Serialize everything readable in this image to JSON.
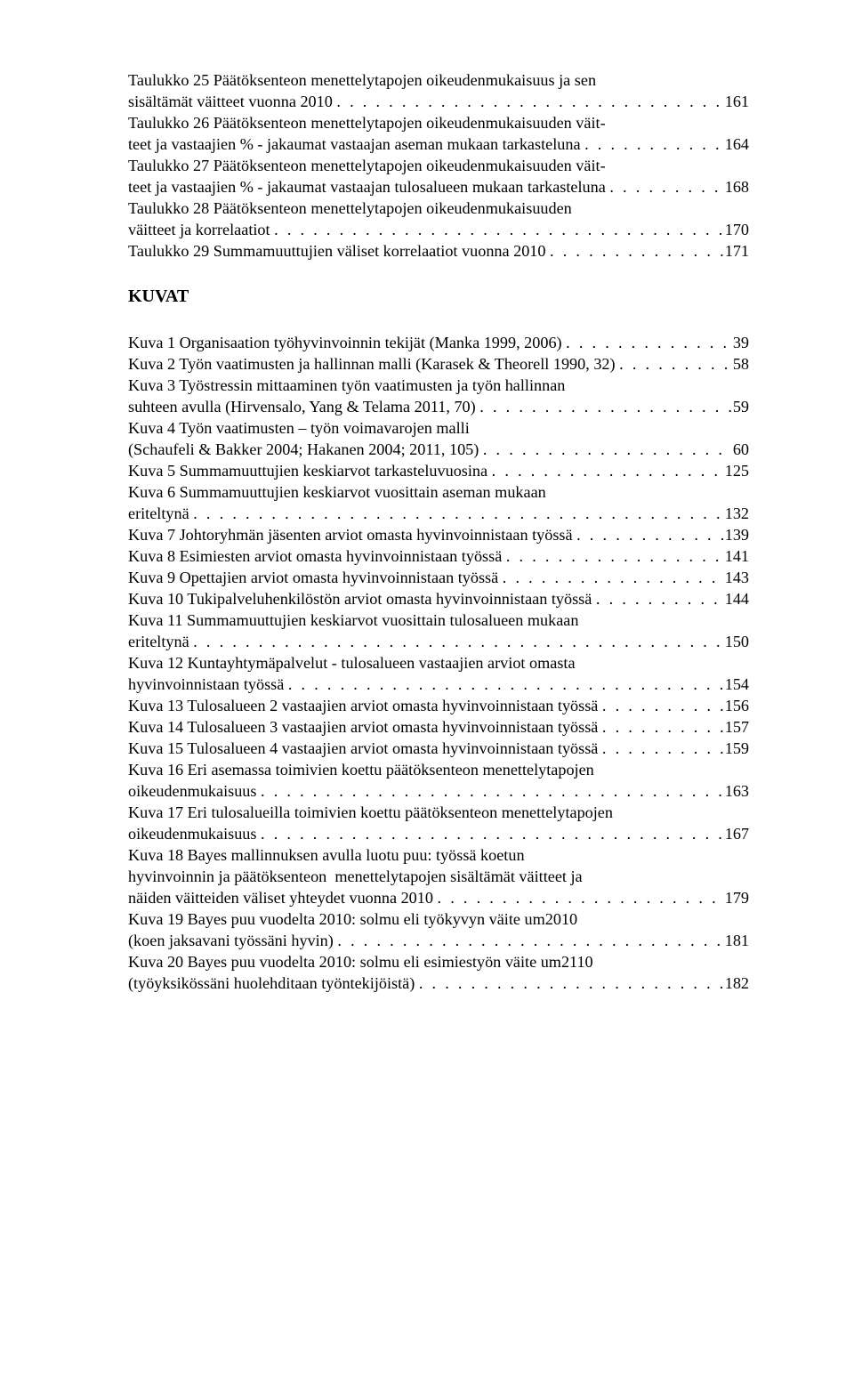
{
  "tables": [
    {
      "lines": [
        "Taulukko 25 Päätöksenteon menettelytapojen oikeudenmukaisuus ja sen"
      ],
      "last": "sisältämät väitteet vuonna 2010",
      "page": "161"
    },
    {
      "lines": [
        "Taulukko 26 Päätöksenteon menettelytapojen oikeudenmukaisuuden väit-"
      ],
      "last": "teet ja vastaajien % - jakaumat vastaajan aseman mukaan tarkasteluna",
      "page": "164"
    },
    {
      "lines": [
        "Taulukko 27 Päätöksenteon menettelytapojen oikeudenmukaisuuden väit-"
      ],
      "last": "teet ja vastaajien % - jakaumat vastaajan tulosalueen mukaan tarkasteluna",
      "page": "168"
    },
    {
      "lines": [
        "Taulukko 28 Päätöksenteon menettelytapojen oikeudenmukaisuuden"
      ],
      "last": "väitteet ja korrelaatiot",
      "page": "170"
    },
    {
      "lines": [],
      "last": "Taulukko 29 Summamuuttujien väliset korrelaatiot vuonna 2010",
      "page": "171"
    }
  ],
  "figuresHeading": "KUVAT",
  "figures": [
    {
      "lines": [],
      "last": "Kuva 1 Organisaation työhyvinvoinnin tekijät (Manka 1999, 2006)",
      "page": "39"
    },
    {
      "lines": [],
      "last": "Kuva 2 Työn vaatimusten ja hallinnan malli (Karasek & Theorell 1990, 32)",
      "page": "58"
    },
    {
      "lines": [
        "Kuva 3 Työstressin mittaaminen työn vaatimusten ja työn hallinnan"
      ],
      "last": "suhteen avulla (Hirvensalo, Yang & Telama 2011, 70)",
      "page": "59"
    },
    {
      "lines": [
        "Kuva 4 Työn vaatimusten – työn voimavarojen malli"
      ],
      "last": "(Schaufeli & Bakker 2004; Hakanen 2004; 2011, 105)",
      "page": "60"
    },
    {
      "lines": [],
      "last": "Kuva 5 Summamuuttujien keskiarvot tarkasteluvuosina",
      "page": "125"
    },
    {
      "lines": [
        "Kuva 6 Summamuuttujien keskiarvot vuosittain aseman mukaan"
      ],
      "last": "eriteltynä",
      "page": "132"
    },
    {
      "lines": [],
      "last": "Kuva 7 Johtoryhmän jäsenten arviot omasta hyvinvoinnistaan työssä",
      "page": "139"
    },
    {
      "lines": [],
      "last": "Kuva 8 Esimiesten arviot omasta hyvinvoinnistaan työssä",
      "page": "141"
    },
    {
      "lines": [],
      "last": "Kuva 9 Opettajien arviot omasta hyvinvoinnistaan työssä",
      "page": "143"
    },
    {
      "lines": [],
      "last": "Kuva 10 Tukipalveluhenkilöstön arviot omasta hyvinvoinnistaan työssä",
      "page": "144"
    },
    {
      "lines": [
        "Kuva 11 Summamuuttujien keskiarvot vuosittain tulosalueen mukaan"
      ],
      "last": "eriteltynä",
      "page": "150"
    },
    {
      "lines": [
        "Kuva 12 Kuntayhtymäpalvelut - tulosalueen vastaajien arviot omasta"
      ],
      "last": "hyvinvoinnistaan työssä",
      "page": "154"
    },
    {
      "lines": [],
      "last": "Kuva 13 Tulosalueen 2 vastaajien arviot omasta hyvinvoinnistaan työssä",
      "page": "156"
    },
    {
      "lines": [],
      "last": "Kuva 14 Tulosalueen 3 vastaajien arviot omasta hyvinvoinnistaan työssä",
      "page": "157"
    },
    {
      "lines": [],
      "last": "Kuva 15 Tulosalueen 4 vastaajien arviot omasta hyvinvoinnistaan työssä",
      "page": "159"
    },
    {
      "lines": [
        "Kuva 16 Eri asemassa toimivien koettu päätöksenteon menettelytapojen"
      ],
      "last": "oikeudenmukaisuus",
      "page": "163"
    },
    {
      "lines": [
        "Kuva 17 Eri tulosalueilla toimivien koettu päätöksenteon menettelytapojen"
      ],
      "last": "oikeudenmukaisuus",
      "page": "167"
    },
    {
      "lines": [
        "Kuva 18 Bayes mallinnuksen avulla luotu puu: työssä koetun",
        "hyvinvoinnin ja päätöksenteon  menettelytapojen sisältämät väitteet ja"
      ],
      "last": "näiden väitteiden väliset yhteydet vuonna 2010",
      "page": "179"
    },
    {
      "lines": [
        "Kuva 19 Bayes puu vuodelta 2010: solmu eli työkyvyn väite um2010"
      ],
      "last": "(koen jaksavani työssäni hyvin)",
      "page": "181"
    },
    {
      "lines": [
        "Kuva 20 Bayes puu vuodelta 2010: solmu eli esimiestyön väite um2110"
      ],
      "last": "(työyksikössäni huolehditaan työntekijöistä)",
      "page": "182"
    }
  ]
}
